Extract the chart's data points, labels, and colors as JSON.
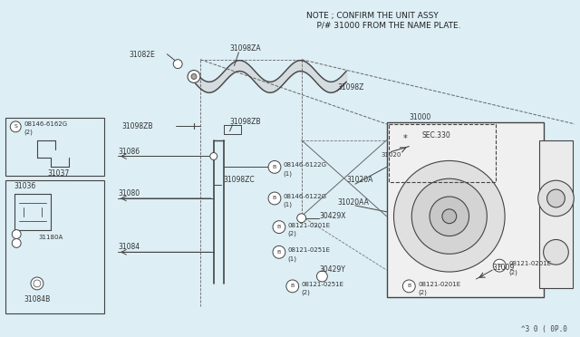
{
  "bg_color": "#ddeef5",
  "line_color": "#444444",
  "note_text1": "NOTE ; CONFIRM THE UNIT ASSY",
  "note_text2": "    P/# 31000 FROM THE NAME PLATE.",
  "diagram_ref": "^3 0 ( 0P.0"
}
